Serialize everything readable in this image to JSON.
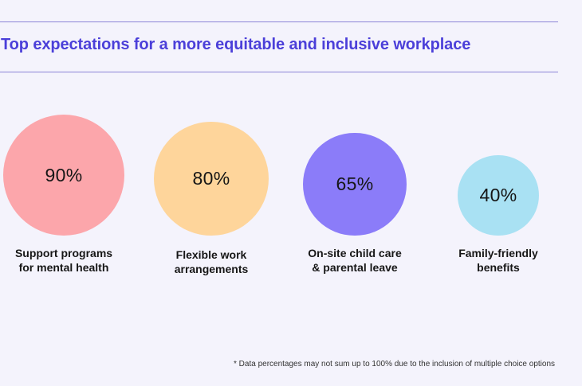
{
  "chart_data": {
    "type": "bubble",
    "title": "Top expectations for a more equitable and inclusive workplace",
    "unit": "%",
    "categories": [
      [
        "Support programs",
        "for mental health"
      ],
      [
        "Flexible work",
        "arrangements"
      ],
      [
        "On-site child care",
        "& parental leave"
      ],
      [
        "Family-friendly",
        "benefits"
      ]
    ],
    "values": [
      90,
      80,
      65,
      40
    ],
    "value_labels": [
      "90%",
      "80%",
      "65%",
      "40%"
    ],
    "colors": [
      "#fca6ab",
      "#fed59b",
      "#8b7cf9",
      "#a9e1f3"
    ],
    "footnote": "* Data percentages may not sum up to 100% due to the inclusion of multiple choice options"
  }
}
